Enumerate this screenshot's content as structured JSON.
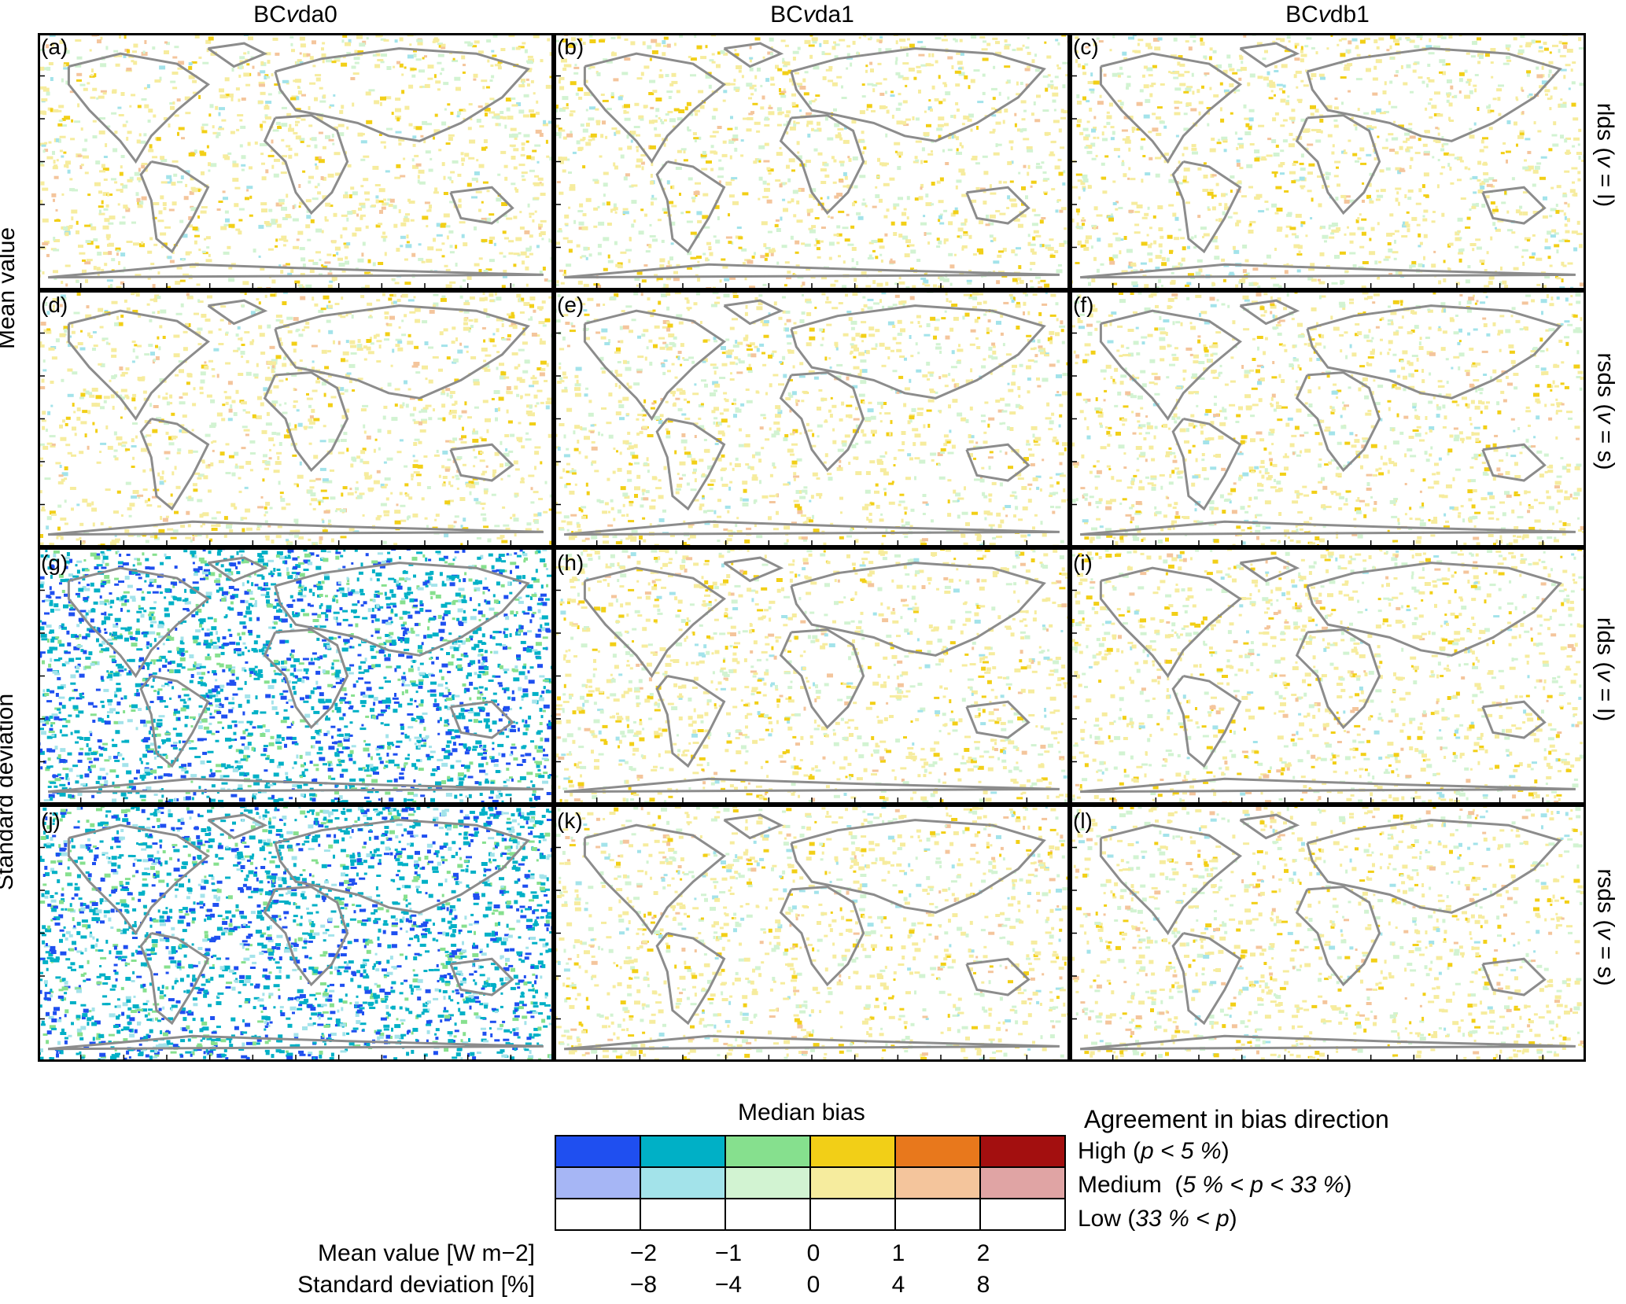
{
  "columns": [
    {
      "prefix": "BC",
      "italic": "v",
      "suffix": "da0"
    },
    {
      "prefix": "BC",
      "italic": "v",
      "suffix": "da1"
    },
    {
      "prefix": "BC",
      "italic": "v",
      "suffix": "db1"
    }
  ],
  "row_groups": [
    "Mean value",
    "Standard deviation"
  ],
  "row_variables": [
    {
      "name": "rlds",
      "symbol": "v",
      "value": "l"
    },
    {
      "name": "rsds",
      "symbol": "v",
      "value": "s"
    },
    {
      "name": "rlds",
      "symbol": "v",
      "value": "l"
    },
    {
      "name": "rsds",
      "symbol": "v",
      "value": "s"
    }
  ],
  "panel_tags": [
    "(a)",
    "(b)",
    "(c)",
    "(d)",
    "(e)",
    "(f)",
    "(g)",
    "(h)",
    "(i)",
    "(j)",
    "(k)",
    "(l)"
  ],
  "legend": {
    "title": "Median bias",
    "agreement_title": "Agreement in bias direction",
    "agreement_levels": [
      {
        "label": "High",
        "condition": "p < 5 %"
      },
      {
        "label": "Medium",
        "condition": "5 % < p < 33 %"
      },
      {
        "label": "Low",
        "condition": "33 % < p"
      }
    ],
    "colors_high": [
      "#1f4ff0",
      "#00b0c6",
      "#86e08e",
      "#f2cf17",
      "#e8781c",
      "#a30f0f"
    ],
    "colors_medium": [
      "#a6b6f5",
      "#a3e3ea",
      "#d2f3d2",
      "#f6ec9e",
      "#f4c59c",
      "#e0a4a4"
    ],
    "colors_low": [
      "#ffffff",
      "#ffffff",
      "#ffffff",
      "#ffffff",
      "#ffffff",
      "#ffffff"
    ],
    "mean_label": "Mean value [W m−2]",
    "std_label": "Standard deviation [%]",
    "mean_ticks": [
      "−2",
      "−1",
      "0",
      "1",
      "2"
    ],
    "std_ticks": [
      "−8",
      "−4",
      "0",
      "4",
      "8"
    ]
  }
}
